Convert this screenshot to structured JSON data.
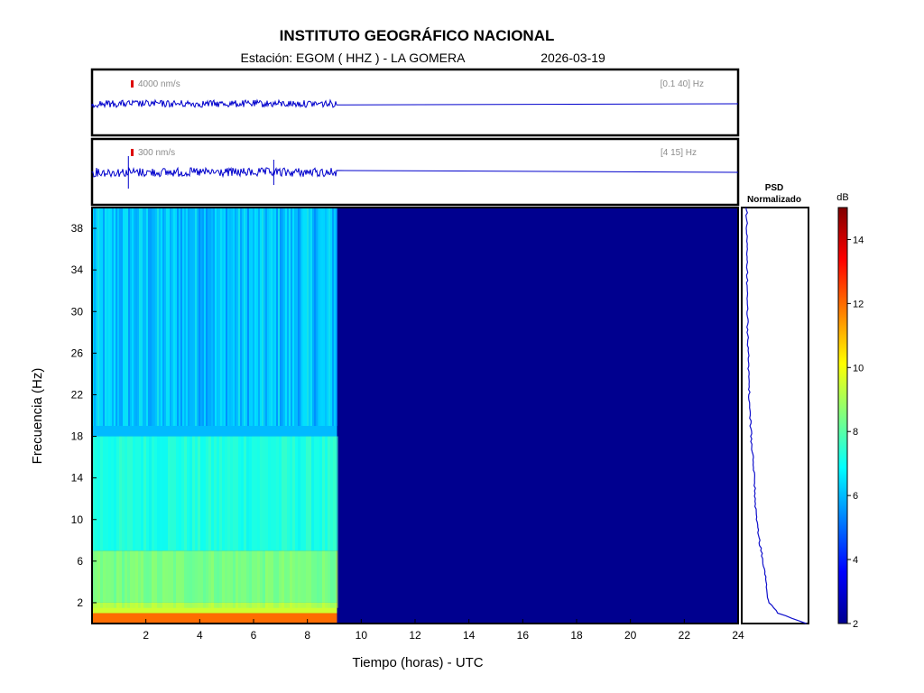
{
  "header": {
    "title": "INSTITUTO GEOGRÁFICO NACIONAL",
    "station": "Estación:  EGOM ( HHZ ) - LA GOMERA",
    "date": "2026-03-19"
  },
  "traces": [
    {
      "amp_label": "4000 nm/s",
      "band_label": "[0.1 40] Hz",
      "color": "#0000cc",
      "marker_color": "#dd0000"
    },
    {
      "amp_label": "300 nm/s",
      "band_label": "[4 15] Hz",
      "color": "#0000cc",
      "marker_color": "#dd0000"
    }
  ],
  "psd_title_line1": "PSD",
  "psd_title_line2": "Normalizado",
  "colorbar": {
    "unit": "dB",
    "min": 2,
    "max": 15,
    "ticks": [
      "2",
      "4",
      "6",
      "8",
      "10",
      "12",
      "14"
    ]
  },
  "chart_data": {
    "type": "heatmap",
    "xlabel": "Tiempo (horas) - UTC",
    "ylabel": "Frecuencia  (Hz)",
    "xlim": [
      0,
      24
    ],
    "ylim": [
      0,
      40
    ],
    "x_ticks": [
      "2",
      "4",
      "6",
      "8",
      "10",
      "12",
      "14",
      "16",
      "18",
      "20",
      "22",
      "24"
    ],
    "y_ticks": [
      "2",
      "6",
      "10",
      "14",
      "18",
      "22",
      "26",
      "30",
      "34",
      "38"
    ],
    "data_end_hour": 9.1,
    "no_data_value_db": 2,
    "bands": [
      {
        "freq_range": [
          0,
          1
        ],
        "level_db": 12
      },
      {
        "freq_range": [
          1,
          2
        ],
        "level_db": 9.5
      },
      {
        "freq_range": [
          2,
          7
        ],
        "level_db": 8.3
      },
      {
        "freq_range": [
          7,
          18
        ],
        "level_db": 7.2
      },
      {
        "freq_range": [
          18,
          40
        ],
        "level_db": 6
      }
    ],
    "psd_normalized": {
      "freq": [
        0,
        1,
        2,
        4,
        6,
        8,
        10,
        14,
        18,
        22,
        30,
        40
      ],
      "value": [
        1.0,
        0.55,
        0.4,
        0.36,
        0.31,
        0.25,
        0.2,
        0.17,
        0.12,
        0.09,
        0.06,
        0.05
      ]
    }
  }
}
